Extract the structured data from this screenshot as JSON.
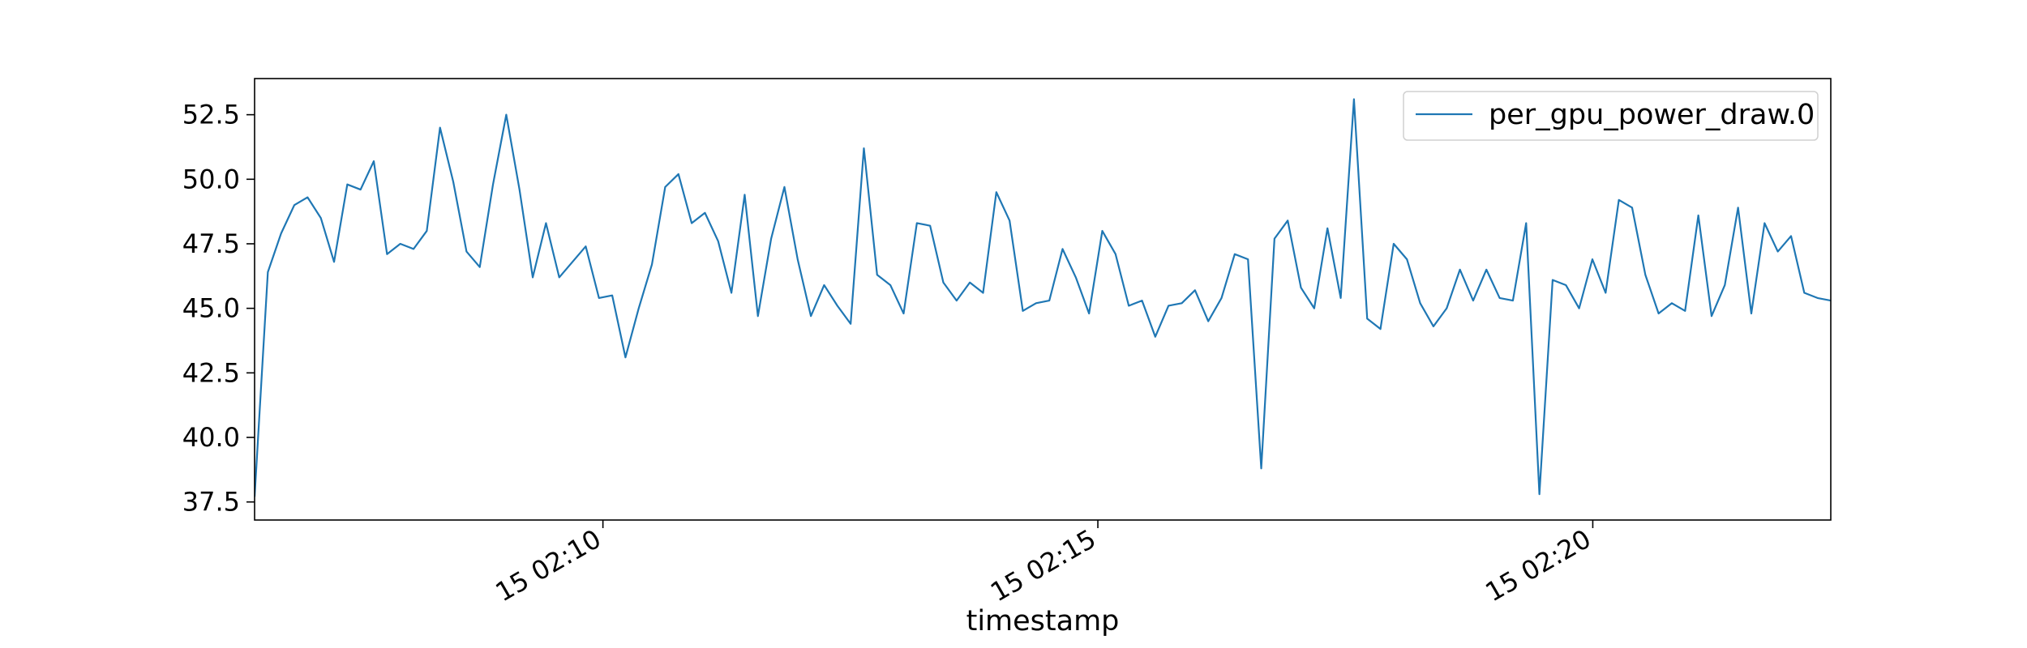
{
  "chart_data": {
    "type": "line",
    "xlabel": "timestamp",
    "ylabel": "",
    "x_tick_labels": [
      "15 02:10",
      "15 02:15",
      "15 02:20"
    ],
    "y_tick_labels": [
      "37.5",
      "40.0",
      "42.5",
      "45.0",
      "47.5",
      "50.0",
      "52.5"
    ],
    "y_ticks": [
      37.5,
      40.0,
      42.5,
      45.0,
      47.5,
      50.0,
      52.5
    ],
    "ylim": [
      36.8,
      53.9
    ],
    "xlim": [
      0,
      119
    ],
    "grid": false,
    "legend_position": "top-right",
    "series": [
      {
        "name": "per_gpu_power_draw.0",
        "color": "#1f77b4",
        "values": [
          37.7,
          46.4,
          47.9,
          49.0,
          49.3,
          48.5,
          46.8,
          49.8,
          49.6,
          50.7,
          47.1,
          47.5,
          47.3,
          48.0,
          52.0,
          49.9,
          47.2,
          46.6,
          49.8,
          52.5,
          49.6,
          46.2,
          48.3,
          46.2,
          46.8,
          47.4,
          45.4,
          45.5,
          43.1,
          45.0,
          46.7,
          49.7,
          50.2,
          48.3,
          48.7,
          47.6,
          45.6,
          49.4,
          44.7,
          47.7,
          49.7,
          46.9,
          44.7,
          45.9,
          45.1,
          44.4,
          51.2,
          46.3,
          45.9,
          44.8,
          48.3,
          48.2,
          46.0,
          45.3,
          46.0,
          45.6,
          49.5,
          48.4,
          44.9,
          45.2,
          45.3,
          47.3,
          46.2,
          44.8,
          48.0,
          47.1,
          45.1,
          45.3,
          43.9,
          45.1,
          45.2,
          45.7,
          44.5,
          45.4,
          47.1,
          46.9,
          38.8,
          47.7,
          48.4,
          45.8,
          45.0,
          48.1,
          45.4,
          53.1,
          44.6,
          44.2,
          47.5,
          46.9,
          45.2,
          44.3,
          45.0,
          46.5,
          45.3,
          46.5,
          45.4,
          45.3,
          48.3,
          37.8,
          46.1,
          45.9,
          45.0,
          46.9,
          45.6,
          49.2,
          48.9,
          46.3,
          44.8,
          45.2,
          44.9,
          48.6,
          44.7,
          45.9,
          48.9,
          44.8,
          48.3,
          47.2,
          47.8,
          45.6,
          45.4,
          45.3
        ]
      }
    ]
  }
}
